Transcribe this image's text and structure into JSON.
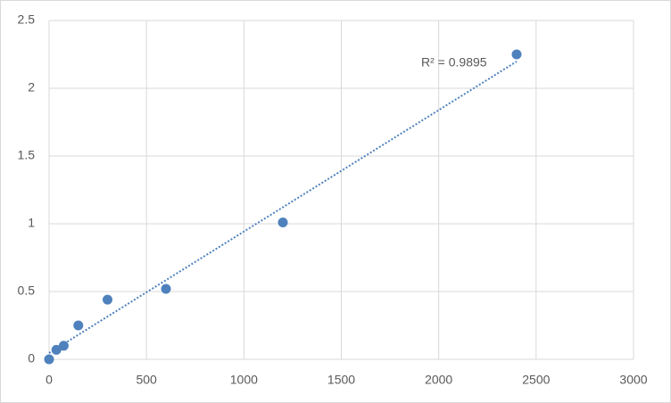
{
  "chart_data": {
    "type": "scatter",
    "x": [
      0,
      37.5,
      75,
      150,
      300,
      600,
      1200,
      2400
    ],
    "series": [
      {
        "color": "#4f81bd",
        "values": [
          0,
          0.07,
          0.1,
          0.25,
          0.44,
          0.52,
          1.01,
          2.25
        ]
      }
    ],
    "xlim": [
      0,
      3000
    ],
    "xticks": [
      0,
      500,
      1000,
      1500,
      2000,
      2500,
      3000
    ],
    "ylim": [
      0,
      2.5
    ],
    "yticks": [
      0,
      0.5,
      1,
      1.5,
      2,
      2.5
    ],
    "grid": true,
    "trendline": "linear",
    "annotation": "R² = 0.9895"
  }
}
